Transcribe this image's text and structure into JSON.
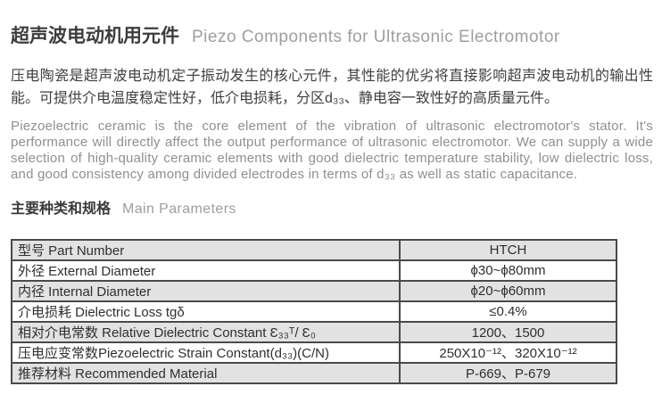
{
  "header": {
    "title_zh": "超声波电动机用元件",
    "title_en": "Piezo Components for Ultrasonic Electromotor"
  },
  "intro": {
    "zh": "压电陶瓷是超声波电动机定子振动发生的核心元件，其性能的优劣将直接影响超声波电动机的输出性能。可提供介电温度稳定性好，低介电损耗，分区d₃₃、静电容一致性好的高质量元件。",
    "en": "Piezoelectric ceramic is the core element of the vibration of ultrasonic electromotor's stator. It's performance will directly affect the output performance of ultrasonic electromotor. We can supply a wide selection of high-quality ceramic elements with good dielectric temperature stability, low dielectric loss, and good consistency among divided electrodes in terms of d₃₃ as well as static capacitance."
  },
  "section": {
    "heading_zh": "主要种类和规格",
    "heading_en": "Main Parameters"
  },
  "table": {
    "rows": [
      {
        "label": "型号 Part Number",
        "value": "HTCH"
      },
      {
        "label": "外径 External Diameter",
        "value": "ϕ30~ϕ80mm"
      },
      {
        "label": "内径 Internal Diameter",
        "value": "ϕ20~ϕ60mm"
      },
      {
        "label": "介电损耗 Dielectric Loss tgδ",
        "value": "≤0.4%"
      },
      {
        "label": "相对介电常数 Relative Dielectric Constant Ɛ₃₃ᵀ/ Ɛ₀",
        "value": "1200、1500"
      },
      {
        "label": "压电应变常数Piezoelectric Strain Constant(d₃₃)(C/N)",
        "value": "250X10⁻¹²、320X10⁻¹²"
      },
      {
        "label": "推荐材料 Recommended Material",
        "value": "P-669、P-679"
      }
    ]
  },
  "colors": {
    "dark_text": "#3d3d3d",
    "muted_text": "#8f8f8f",
    "title_en_gray": "#9e9e9e",
    "table_border": "#4a4a4a",
    "row_shade": "#e2e2e2"
  }
}
